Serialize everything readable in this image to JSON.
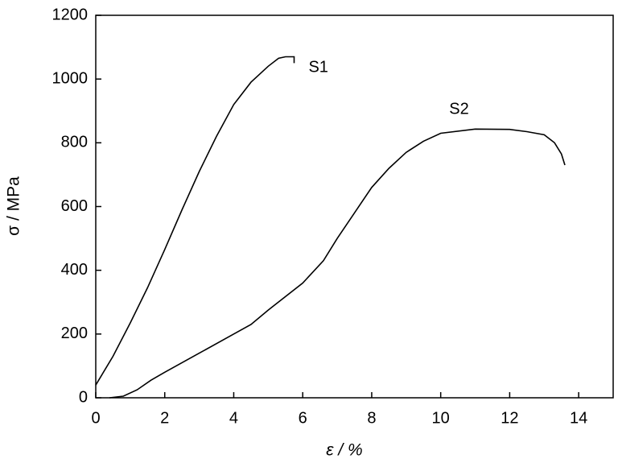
{
  "chart_data": {
    "type": "line",
    "x_label": "ε / %",
    "y_label": "σ / MPa",
    "xlim": [
      0,
      15
    ],
    "xticks": [
      0,
      2,
      4,
      6,
      8,
      10,
      12,
      14
    ],
    "ylim": [
      0,
      1200
    ],
    "yticks": [
      0,
      200,
      400,
      600,
      800,
      1000,
      1200
    ],
    "series": [
      {
        "name": "S1",
        "color": "#000000",
        "x": [
          0,
          0.5,
          1,
          1.5,
          2,
          2.5,
          3,
          3.5,
          4,
          4.5,
          5,
          5.3,
          5.5,
          5.75,
          5.75
        ],
        "values": [
          40,
          130,
          235,
          345,
          465,
          590,
          710,
          820,
          920,
          990,
          1040,
          1065,
          1070,
          1070,
          1050
        ]
      },
      {
        "name": "S2",
        "color": "#000000",
        "x": [
          0.4,
          0.8,
          1.2,
          1.6,
          2,
          3,
          4,
          4.5,
          5,
          6,
          6.6,
          7,
          7.5,
          8,
          8.5,
          9,
          9.5,
          10,
          11,
          12,
          12.5,
          13,
          13.3,
          13.5,
          13.6
        ],
        "values": [
          0,
          5,
          25,
          55,
          80,
          140,
          200,
          230,
          275,
          360,
          430,
          500,
          580,
          660,
          720,
          770,
          805,
          830,
          843,
          842,
          835,
          825,
          800,
          765,
          730
        ]
      }
    ]
  }
}
